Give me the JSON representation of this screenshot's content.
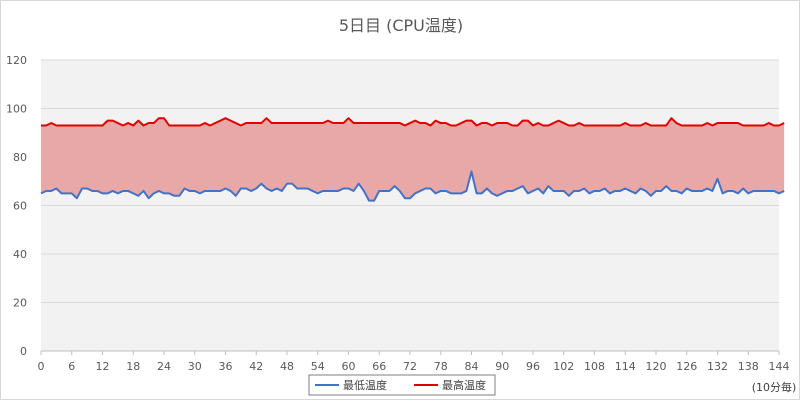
{
  "chart_data": {
    "type": "area",
    "title": "5日目 (CPU温度)",
    "x_unit_note": "(10分毎)",
    "xlabel": "",
    "ylabel": "",
    "ylim": [
      0,
      120
    ],
    "yticks": [
      0,
      20,
      40,
      60,
      80,
      100,
      120
    ],
    "xlim": [
      0,
      144
    ],
    "xticks": [
      "0",
      "6",
      "12",
      "18",
      "24",
      "30",
      "36",
      "42",
      "48",
      "54",
      "60",
      "66",
      "72",
      "78",
      "84",
      "90",
      "96",
      "102",
      "108",
      "114",
      "120",
      "126",
      "132",
      "138",
      "144"
    ],
    "grid": true,
    "legend_position": "bottom",
    "band_fill_color": "#e8a8a8",
    "plot_background": "#f2f2f2",
    "series": [
      {
        "name": "最低温度",
        "color": "#4472c4",
        "values": [
          65,
          66,
          66,
          67,
          65,
          65,
          65,
          63,
          67,
          67,
          66,
          66,
          65,
          65,
          66,
          65,
          66,
          66,
          65,
          64,
          66,
          63,
          65,
          66,
          65,
          65,
          64,
          64,
          67,
          66,
          66,
          65,
          66,
          66,
          66,
          66,
          67,
          66,
          64,
          67,
          67,
          66,
          67,
          69,
          67,
          66,
          67,
          66,
          69,
          69,
          67,
          67,
          67,
          66,
          65,
          66,
          66,
          66,
          66,
          67,
          67,
          66,
          69,
          66,
          62,
          62,
          66,
          66,
          66,
          68,
          66,
          63,
          63,
          65,
          66,
          67,
          67,
          65,
          66,
          66,
          65,
          65,
          65,
          66,
          74,
          65,
          65,
          67,
          65,
          64,
          65,
          66,
          66,
          67,
          68,
          65,
          66,
          67,
          65,
          68,
          66,
          66,
          66,
          64,
          66,
          66,
          67,
          65,
          66,
          66,
          67,
          65,
          66,
          66,
          67,
          66,
          65,
          67,
          66,
          64,
          66,
          66,
          68,
          66,
          66,
          65,
          67,
          66,
          66,
          66,
          67,
          66,
          71,
          65,
          66,
          66,
          65,
          67,
          65,
          66,
          66,
          66,
          66,
          66,
          65,
          66
        ]
      },
      {
        "name": "最高温度",
        "color": "#e00000",
        "values": [
          93,
          93,
          94,
          93,
          93,
          93,
          93,
          93,
          93,
          93,
          93,
          93,
          93,
          95,
          95,
          94,
          93,
          94,
          93,
          95,
          93,
          94,
          94,
          96,
          96,
          93,
          93,
          93,
          93,
          93,
          93,
          93,
          94,
          93,
          94,
          95,
          96,
          95,
          94,
          93,
          94,
          94,
          94,
          94,
          96,
          94,
          94,
          94,
          94,
          94,
          94,
          94,
          94,
          94,
          94,
          94,
          95,
          94,
          94,
          94,
          96,
          94,
          94,
          94,
          94,
          94,
          94,
          94,
          94,
          94,
          94,
          93,
          94,
          95,
          94,
          94,
          93,
          95,
          94,
          94,
          93,
          93,
          94,
          95,
          95,
          93,
          94,
          94,
          93,
          94,
          94,
          94,
          93,
          93,
          95,
          95,
          93,
          94,
          93,
          93,
          94,
          95,
          94,
          93,
          93,
          94,
          93,
          93,
          93,
          93,
          93,
          93,
          93,
          93,
          94,
          93,
          93,
          93,
          94,
          93,
          93,
          93,
          93,
          96,
          94,
          93,
          93,
          93,
          93,
          93,
          94,
          93,
          94,
          94,
          94,
          94,
          94,
          93,
          93,
          93,
          93,
          93,
          94,
          93,
          93,
          94
        ]
      }
    ]
  }
}
